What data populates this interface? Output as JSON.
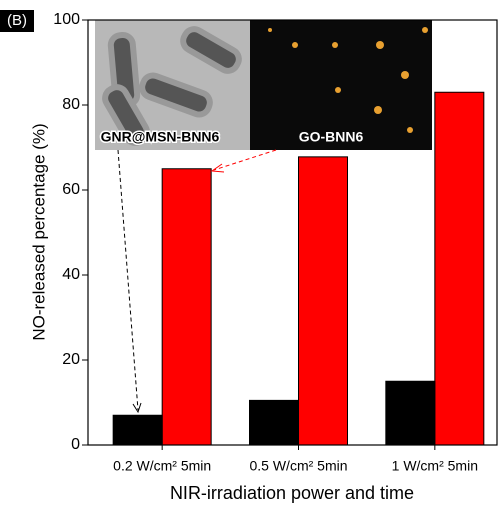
{
  "chart_data": {
    "type": "bar",
    "panel_label": "(B)",
    "x_label": "NIR-irradiation power and time",
    "y_label": "NO-released percentage (%)",
    "categories": [
      "0.2 W/cm² 5min",
      "0.5 W/cm² 5min",
      "1 W/cm² 5min"
    ],
    "series": [
      {
        "name": "GNR@MSN-BNN6",
        "color": "#000000",
        "values": [
          7,
          10.5,
          15
        ]
      },
      {
        "name": "GO-BNN6",
        "color": "#ff0000",
        "values": [
          65,
          67.8,
          83
        ]
      }
    ],
    "ylim": [
      0,
      100
    ],
    "yticks": [
      0,
      20,
      40,
      60,
      80,
      100
    ],
    "grid": false
  }
}
